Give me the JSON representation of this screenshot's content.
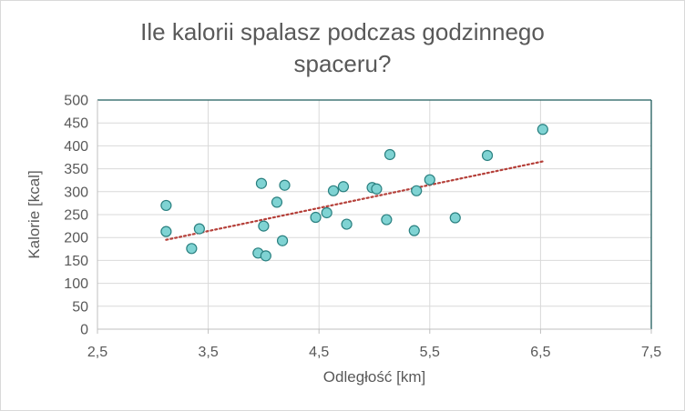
{
  "chart_data": {
    "type": "scatter",
    "title_lines": [
      "Ile kalorii spalasz podczas godzinnego",
      "spaceru?"
    ],
    "xlabel": "Odległość [km]",
    "ylabel": "Kalorie [kcal]",
    "xlim": [
      2.5,
      7.5
    ],
    "ylim": [
      0,
      500
    ],
    "x_ticks": [
      "2,5",
      "3,5",
      "4,5",
      "5,5",
      "6,5",
      "7,5"
    ],
    "y_ticks": [
      "0",
      "50",
      "100",
      "150",
      "200",
      "250",
      "300",
      "350",
      "400",
      "450",
      "500"
    ],
    "grid": true,
    "legend": "none",
    "marker_color": "#7fd3d3",
    "marker_edge_color": "#2a8080",
    "trendline": {
      "type": "linear",
      "style": "dotted",
      "color": "#b5403a",
      "x": [
        3.12,
        6.52
      ],
      "y": [
        195,
        366
      ]
    },
    "points": [
      {
        "x": 3.12,
        "y": 270
      },
      {
        "x": 3.12,
        "y": 213
      },
      {
        "x": 3.35,
        "y": 176
      },
      {
        "x": 3.42,
        "y": 219
      },
      {
        "x": 3.95,
        "y": 166
      },
      {
        "x": 3.98,
        "y": 318
      },
      {
        "x": 4.0,
        "y": 225
      },
      {
        "x": 4.02,
        "y": 160
      },
      {
        "x": 4.12,
        "y": 277
      },
      {
        "x": 4.17,
        "y": 193
      },
      {
        "x": 4.19,
        "y": 314
      },
      {
        "x": 4.47,
        "y": 244
      },
      {
        "x": 4.57,
        "y": 254
      },
      {
        "x": 4.63,
        "y": 302
      },
      {
        "x": 4.72,
        "y": 311
      },
      {
        "x": 4.75,
        "y": 229
      },
      {
        "x": 4.98,
        "y": 309
      },
      {
        "x": 5.02,
        "y": 306
      },
      {
        "x": 5.11,
        "y": 239
      },
      {
        "x": 5.14,
        "y": 381
      },
      {
        "x": 5.36,
        "y": 215
      },
      {
        "x": 5.38,
        "y": 302
      },
      {
        "x": 5.5,
        "y": 326
      },
      {
        "x": 5.73,
        "y": 243
      },
      {
        "x": 6.02,
        "y": 379
      },
      {
        "x": 6.52,
        "y": 436
      }
    ]
  }
}
